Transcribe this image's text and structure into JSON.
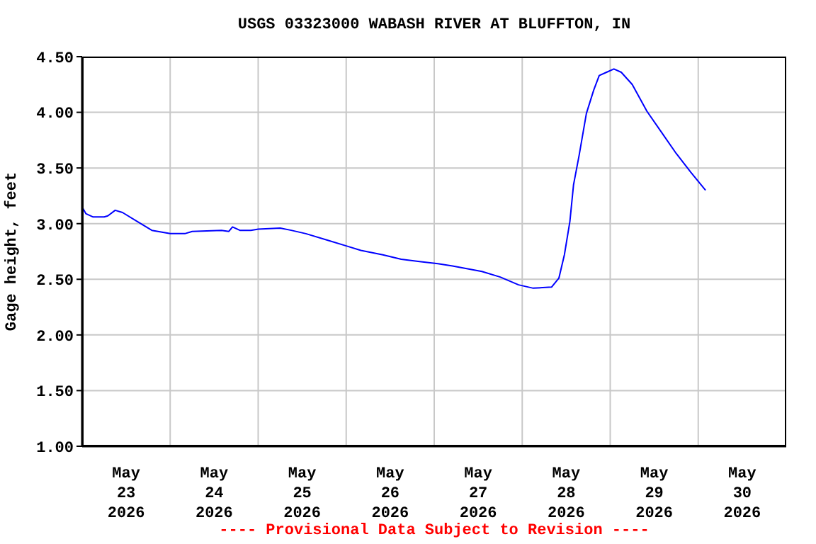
{
  "chart_data": {
    "type": "line",
    "title": "USGS 03323000 WABASH RIVER AT BLUFFTON, IN",
    "ylabel": "Gage height, feet",
    "annotations": [
      "---- Provisional Data Subject to Revision ----"
    ],
    "x": [
      "2026-05-23T00:00",
      "2026-05-23T01:00",
      "2026-05-23T03:00",
      "2026-05-23T06:00",
      "2026-05-23T07:00",
      "2026-05-23T09:00",
      "2026-05-23T11:00",
      "2026-05-23T15:00",
      "2026-05-23T19:00",
      "2026-05-24T00:00",
      "2026-05-24T04:00",
      "2026-05-24T06:00",
      "2026-05-24T14:00",
      "2026-05-24T16:00",
      "2026-05-24T17:00",
      "2026-05-24T19:00",
      "2026-05-24T22:00",
      "2026-05-25T00:00",
      "2026-05-25T06:00",
      "2026-05-25T09:00",
      "2026-05-25T13:00",
      "2026-05-25T19:00",
      "2026-05-26T00:00",
      "2026-05-26T04:00",
      "2026-05-26T10:00",
      "2026-05-26T15:00",
      "2026-05-26T20:00",
      "2026-05-27T01:00",
      "2026-05-27T05:00",
      "2026-05-27T13:00",
      "2026-05-27T18:00",
      "2026-05-27T23:00",
      "2026-05-28T03:00",
      "2026-05-28T08:00",
      "2026-05-28T10:00",
      "2026-05-28T11:30",
      "2026-05-28T13:00",
      "2026-05-28T14:00",
      "2026-05-28T15:30",
      "2026-05-28T17:30",
      "2026-05-28T19:30",
      "2026-05-28T21:00",
      "2026-05-28T23:00",
      "2026-05-29T01:00",
      "2026-05-29T03:00",
      "2026-05-29T06:00",
      "2026-05-29T10:00",
      "2026-05-29T14:00",
      "2026-05-29T18:00",
      "2026-05-29T22:00",
      "2026-05-30T02:00"
    ],
    "series": [
      {
        "color": "#0000ff",
        "values": [
          3.15,
          3.09,
          3.06,
          3.06,
          3.07,
          3.12,
          3.1,
          3.02,
          2.94,
          2.91,
          2.91,
          2.93,
          2.94,
          2.93,
          2.97,
          2.94,
          2.94,
          2.95,
          2.96,
          2.94,
          2.91,
          2.85,
          2.8,
          2.76,
          2.72,
          2.68,
          2.66,
          2.64,
          2.62,
          2.57,
          2.52,
          2.45,
          2.42,
          2.43,
          2.51,
          2.72,
          3.02,
          3.35,
          3.61,
          3.99,
          4.2,
          4.33,
          4.36,
          4.39,
          4.36,
          4.25,
          4.01,
          3.82,
          3.63,
          3.46,
          3.3
        ]
      }
    ],
    "xlim": [
      "2026-05-23T00:00",
      "2026-05-31T00:00"
    ],
    "xticks": [
      {
        "value": "2026-05-23T12:00",
        "label": "May 23 2026"
      },
      {
        "value": "2026-05-24T00:00",
        "label": null
      },
      {
        "value": "2026-05-24T12:00",
        "label": "May 24 2026"
      },
      {
        "value": "2026-05-25T00:00",
        "label": null
      },
      {
        "value": "2026-05-25T12:00",
        "label": "May 25 2026"
      },
      {
        "value": "2026-05-26T00:00",
        "label": null
      },
      {
        "value": "2026-05-26T12:00",
        "label": "May 26 2026"
      },
      {
        "value": "2026-05-27T00:00",
        "label": null
      },
      {
        "value": "2026-05-27T12:00",
        "label": "May 27 2026"
      },
      {
        "value": "2026-05-28T00:00",
        "label": null
      },
      {
        "value": "2026-05-28T12:00",
        "label": "May 28 2026"
      },
      {
        "value": "2026-05-29T00:00",
        "label": null
      },
      {
        "value": "2026-05-29T12:00",
        "label": "May 29 2026"
      },
      {
        "value": "2026-05-30T00:00",
        "label": null
      },
      {
        "value": "2026-05-30T12:00",
        "label": "May 30 2026"
      }
    ],
    "ylim": [
      1,
      4.5
    ],
    "yticks": [
      {
        "value": 1,
        "label": "1.00"
      },
      {
        "value": 1.5,
        "label": "1.50"
      },
      {
        "value": 2,
        "label": "2.00"
      },
      {
        "value": 2.5,
        "label": "2.50"
      },
      {
        "value": 3,
        "label": "3.00"
      },
      {
        "value": 3.5,
        "label": "3.50"
      },
      {
        "value": 4,
        "label": "4.00"
      },
      {
        "value": 4.5,
        "label": "4.50"
      }
    ],
    "grid": true,
    "legend": false,
    "marker": "none",
    "line_style": "solid"
  }
}
